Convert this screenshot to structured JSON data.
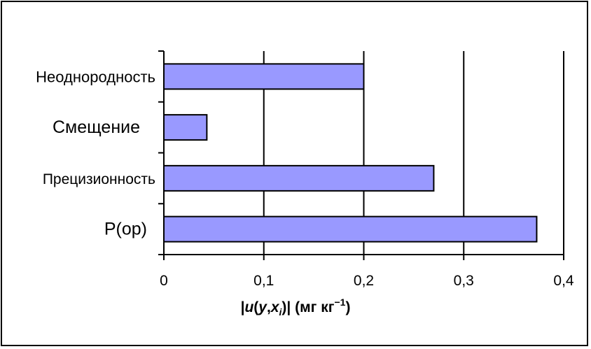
{
  "chart_data": {
    "type": "bar",
    "orientation": "horizontal",
    "categories": [
      "Неоднородность",
      "Смещение",
      "Прецизионность",
      "P(op)"
    ],
    "values": [
      0.2,
      0.043,
      0.27,
      0.373
    ],
    "xlim": [
      0,
      0.4
    ],
    "xticks": [
      "0",
      "0,1",
      "0,2",
      "0,3",
      "0,4"
    ],
    "xlabel": {
      "prefix": "|",
      "u": "u",
      "open": "(",
      "y": "y",
      "comma": ",",
      "x": "x",
      "sub": "i",
      "close": ")|",
      "units": " (мг кг",
      "sup": "−1",
      "end": ")"
    },
    "grid": "vertical",
    "bar_color": "#9999ff"
  }
}
